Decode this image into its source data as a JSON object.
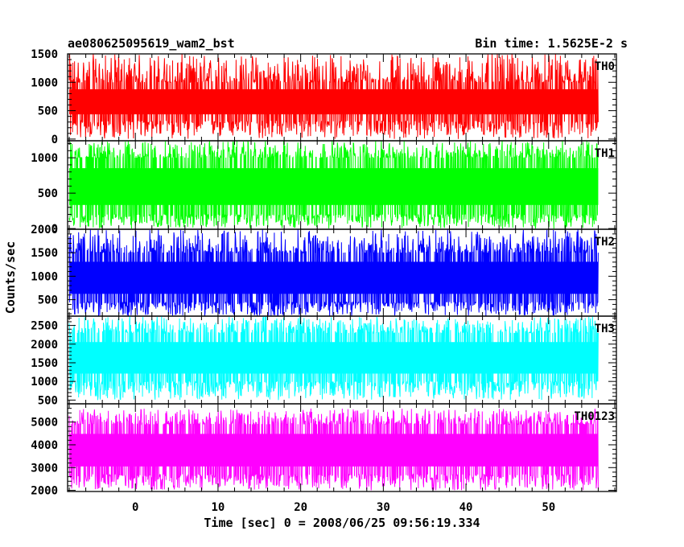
{
  "chart_data": {
    "type": "line",
    "title": "ae080625095619_wam2_bst",
    "bin_time_label": "Bin time: 1.5625E-2 s",
    "xlabel": "Time [sec] 0 = 2008/06/25 09:56:19.334",
    "ylabel": "Counts/sec",
    "xlim": [
      -8.2,
      58.2
    ],
    "data_x_range": [
      -8.0,
      56.0
    ],
    "x_ticks": [
      0,
      10,
      20,
      30,
      40,
      50
    ],
    "x_minor_step": 2,
    "grid": false,
    "panels": [
      {
        "name": "TH0",
        "color": "#ff0000",
        "ylim": [
          -30,
          1500
        ],
        "y_ticks": [
          0,
          500,
          1000,
          1500
        ],
        "y_minor_step": 100,
        "band": {
          "mean": 650,
          "low": 320,
          "high": 1000
        },
        "spikes": {
          "min": 0,
          "max": 1500
        }
      },
      {
        "name": "TH1",
        "color": "#00ff00",
        "ylim": [
          -10,
          1240
        ],
        "y_ticks": [
          0,
          500,
          1000
        ],
        "y_minor_step": 100,
        "band": {
          "mean": 580,
          "low": 200,
          "high": 1000
        },
        "spikes": {
          "min": 0,
          "max": 1240
        }
      },
      {
        "name": "TH2",
        "color": "#0000ff",
        "ylim": [
          150,
          2000
        ],
        "y_ticks": [
          500,
          1000,
          1500,
          2000
        ],
        "y_minor_step": 100,
        "band": {
          "mean": 950,
          "low": 450,
          "high": 1500
        },
        "spikes": {
          "min": 150,
          "max": 2000
        }
      },
      {
        "name": "TH3",
        "color": "#00ffff",
        "ylim": [
          400,
          2750
        ],
        "y_ticks": [
          500,
          1000,
          1500,
          2000,
          2500
        ],
        "y_minor_step": 100,
        "band": {
          "mean": 1600,
          "low": 1000,
          "high": 2300
        },
        "spikes": {
          "min": 500,
          "max": 2750
        }
      },
      {
        "name": "TH0123",
        "color": "#ff00ff",
        "ylim": [
          1950,
          5800
        ],
        "y_ticks": [
          2000,
          3000,
          4000,
          5000
        ],
        "y_minor_step": 200,
        "band": {
          "mean": 3700,
          "low": 2700,
          "high": 4900
        },
        "spikes": {
          "min": 2000,
          "max": 5600
        }
      }
    ]
  }
}
